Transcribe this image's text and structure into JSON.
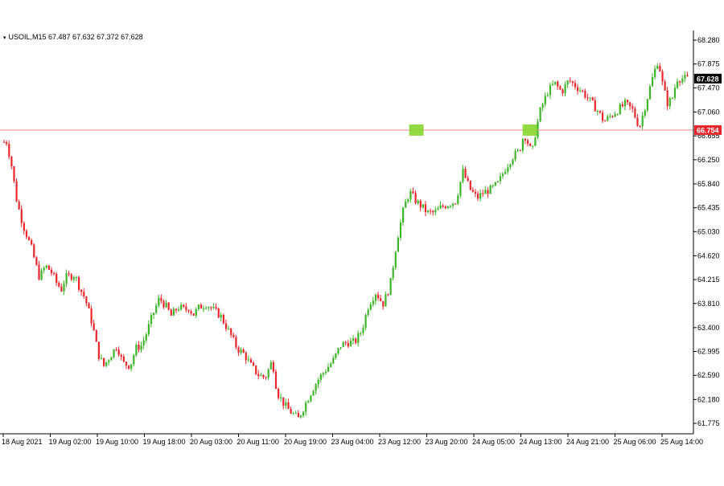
{
  "header": {
    "symbol_line": "USOIL,M15  67.487 67.632 67.372 67.628"
  },
  "chart_data": {
    "type": "candlestick",
    "symbol": "USOIL,M15",
    "header_values": {
      "open": 67.487,
      "high": 67.632,
      "low": 67.372,
      "close": 67.628
    },
    "y_ticks": [
      61.775,
      62.18,
      62.59,
      62.995,
      63.4,
      63.81,
      64.215,
      64.62,
      65.03,
      65.435,
      65.84,
      66.25,
      66.655,
      67.06,
      67.47,
      67.875,
      68.28
    ],
    "y_tick_labels": [
      "61.775",
      "62.180",
      "62.590",
      "62.995",
      "63.400",
      "63.810",
      "64.215",
      "64.620",
      "65.030",
      "65.435",
      "65.840",
      "66.250",
      "66.655",
      "67.060",
      "67.470",
      "67.875",
      "68.280"
    ],
    "ylim": [
      61.6,
      68.35
    ],
    "x_ticks": [
      "18 Aug 2021",
      "19 Aug 02:00",
      "19 Aug 10:00",
      "19 Aug 18:00",
      "20 Aug 03:00",
      "20 Aug 11:00",
      "20 Aug 19:00",
      "23 Aug 04:00",
      "23 Aug 12:00",
      "23 Aug 20:00",
      "24 Aug 05:00",
      "24 Aug 13:00",
      "24 Aug 21:00",
      "25 Aug 06:00",
      "25 Aug 14:00"
    ],
    "grid": false,
    "bull_color": "#3cb528",
    "bear_color": "#e8262b",
    "level_line": {
      "value": 66.754,
      "label": "66.754",
      "color": "#e8262b"
    },
    "current_price": {
      "value": 67.628,
      "label": "67.628"
    },
    "highlight_color": "#7ed321",
    "highlight_marks": [
      {
        "x_index": 8.78,
        "value": 66.754
      },
      {
        "x_index": 11.19,
        "value": 66.754
      }
    ],
    "path_points": [
      [
        0.0,
        66.55
      ],
      [
        0.04,
        66.6
      ],
      [
        0.15,
        66.2
      ],
      [
        0.27,
        65.55
      ],
      [
        0.4,
        65.15
      ],
      [
        0.58,
        64.75
      ],
      [
        0.75,
        64.25
      ],
      [
        0.88,
        64.45
      ],
      [
        1.0,
        64.35
      ],
      [
        1.12,
        64.15
      ],
      [
        1.22,
        64.05
      ],
      [
        1.3,
        64.25
      ],
      [
        1.5,
        64.3
      ],
      [
        1.62,
        64.05
      ],
      [
        1.72,
        63.9
      ],
      [
        1.88,
        63.45
      ],
      [
        2.0,
        62.95
      ],
      [
        2.12,
        62.75
      ],
      [
        2.28,
        62.95
      ],
      [
        2.4,
        63.1
      ],
      [
        2.52,
        62.8
      ],
      [
        2.68,
        62.75
      ],
      [
        2.8,
        63.05
      ],
      [
        2.92,
        63.1
      ],
      [
        3.0,
        63.25
      ],
      [
        3.15,
        63.6
      ],
      [
        3.3,
        63.9
      ],
      [
        3.45,
        63.75
      ],
      [
        3.55,
        63.6
      ],
      [
        3.7,
        63.75
      ],
      [
        3.85,
        63.7
      ],
      [
        3.95,
        63.75
      ],
      [
        4.0,
        63.6
      ],
      [
        4.15,
        63.75
      ],
      [
        4.3,
        63.8
      ],
      [
        4.45,
        63.7
      ],
      [
        4.6,
        63.6
      ],
      [
        4.8,
        63.3
      ],
      [
        4.95,
        63.05
      ],
      [
        5.1,
        62.95
      ],
      [
        5.25,
        62.75
      ],
      [
        5.4,
        62.6
      ],
      [
        5.55,
        62.55
      ],
      [
        5.7,
        62.85
      ],
      [
        5.8,
        62.3
      ],
      [
        5.95,
        62.1
      ],
      [
        6.05,
        62.0
      ],
      [
        6.25,
        61.85
      ],
      [
        6.4,
        62.1
      ],
      [
        6.55,
        62.35
      ],
      [
        6.7,
        62.55
      ],
      [
        6.85,
        62.7
      ],
      [
        7.0,
        62.85
      ],
      [
        7.15,
        63.1
      ],
      [
        7.3,
        63.15
      ],
      [
        7.45,
        63.15
      ],
      [
        7.6,
        63.35
      ],
      [
        7.75,
        63.8
      ],
      [
        7.9,
        64.0
      ],
      [
        8.05,
        63.8
      ],
      [
        8.2,
        64.1
      ],
      [
        8.35,
        64.9
      ],
      [
        8.5,
        65.45
      ],
      [
        8.62,
        65.7
      ],
      [
        8.75,
        65.55
      ],
      [
        8.88,
        65.45
      ],
      [
        9.0,
        65.35
      ],
      [
        9.15,
        65.35
      ],
      [
        9.3,
        65.45
      ],
      [
        9.45,
        65.5
      ],
      [
        9.6,
        65.55
      ],
      [
        9.75,
        66.05
      ],
      [
        9.9,
        65.75
      ],
      [
        10.05,
        65.6
      ],
      [
        10.2,
        65.7
      ],
      [
        10.35,
        65.75
      ],
      [
        10.5,
        65.85
      ],
      [
        10.65,
        66.1
      ],
      [
        10.8,
        66.3
      ],
      [
        10.95,
        66.4
      ],
      [
        11.05,
        66.7
      ],
      [
        11.15,
        66.5
      ],
      [
        11.22,
        66.35
      ],
      [
        11.3,
        66.75
      ],
      [
        11.4,
        67.1
      ],
      [
        11.55,
        67.4
      ],
      [
        11.7,
        67.55
      ],
      [
        11.85,
        67.4
      ],
      [
        12.0,
        67.6
      ],
      [
        12.15,
        67.5
      ],
      [
        12.3,
        67.4
      ],
      [
        12.45,
        67.25
      ],
      [
        12.6,
        67.1
      ],
      [
        12.75,
        66.9
      ],
      [
        12.9,
        67.0
      ],
      [
        13.05,
        67.1
      ],
      [
        13.2,
        67.2
      ],
      [
        13.35,
        67.1
      ],
      [
        13.5,
        66.8
      ],
      [
        13.65,
        67.25
      ],
      [
        13.8,
        67.7
      ],
      [
        13.9,
        67.95
      ],
      [
        14.0,
        67.5
      ],
      [
        14.1,
        67.2
      ],
      [
        14.2,
        67.3
      ],
      [
        14.3,
        67.63
      ]
    ]
  }
}
